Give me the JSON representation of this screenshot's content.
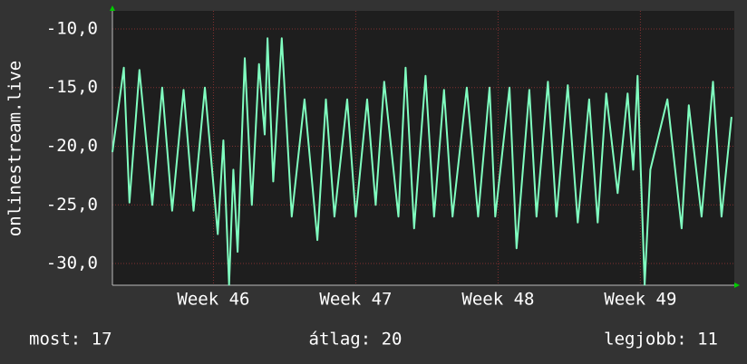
{
  "chart_data": {
    "type": "line",
    "ylabel": "onlinestream.live",
    "x": [
      45.29,
      45.37,
      45.41,
      45.48,
      45.57,
      45.64,
      45.71,
      45.79,
      45.86,
      45.94,
      46.03,
      46.07,
      46.11,
      46.14,
      46.17,
      46.22,
      46.27,
      46.32,
      46.36,
      46.38,
      46.42,
      46.48,
      46.55,
      46.64,
      46.73,
      46.79,
      46.85,
      46.94,
      47.0,
      47.08,
      47.14,
      47.2,
      47.3,
      47.35,
      47.41,
      47.49,
      47.55,
      47.62,
      47.68,
      47.78,
      47.86,
      47.94,
      47.98,
      48.08,
      48.13,
      48.22,
      48.27,
      48.35,
      48.41,
      48.49,
      48.56,
      48.64,
      48.7,
      48.76,
      48.84,
      48.91,
      48.95,
      48.98,
      49.03,
      49.07,
      49.19,
      49.29,
      49.34,
      49.43,
      49.51,
      49.57,
      49.64
    ],
    "values": [
      -20.5,
      -13.3,
      -24.8,
      -13.5,
      -25,
      -15,
      -25.5,
      -15.2,
      -25.5,
      -15,
      -27.5,
      -19.5,
      -31.8,
      -22,
      -29,
      -12.5,
      -25,
      -13,
      -19,
      -10.8,
      -23,
      -10.8,
      -26,
      -16,
      -28,
      -16,
      -26,
      -16,
      -26,
      -16,
      -25,
      -14.5,
      -26,
      -13.3,
      -27,
      -14,
      -26,
      -15.2,
      -26,
      -15,
      -26,
      -15,
      -26,
      -15,
      -28.7,
      -15.2,
      -26,
      -14.5,
      -26,
      -14.8,
      -26.5,
      -16,
      -26.5,
      -15.5,
      -24,
      -15.5,
      -22,
      -14,
      -31.8,
      -22,
      -16,
      -27,
      -16.5,
      -26,
      -14.5,
      -26,
      -17.5
    ],
    "color": "#80ffc0",
    "xlim": [
      45.29,
      49.66
    ],
    "xticks": [
      {
        "value": 46,
        "label": "Week 46"
      },
      {
        "value": 47,
        "label": "Week 47"
      },
      {
        "value": 48,
        "label": "Week 48"
      },
      {
        "value": 49,
        "label": "Week 49"
      }
    ],
    "ylim": [
      -31.85,
      -8.46
    ],
    "yticks": [
      {
        "value": -10,
        "label": "-10,0"
      },
      {
        "value": -15,
        "label": "-15,0"
      },
      {
        "value": -20,
        "label": "-20,0"
      },
      {
        "value": -25,
        "label": "-25,0"
      },
      {
        "value": -30,
        "label": "-30,0"
      }
    ],
    "grid": true,
    "stats": [
      "most: 17",
      "átlag: 20",
      "legjobb: 11"
    ]
  }
}
